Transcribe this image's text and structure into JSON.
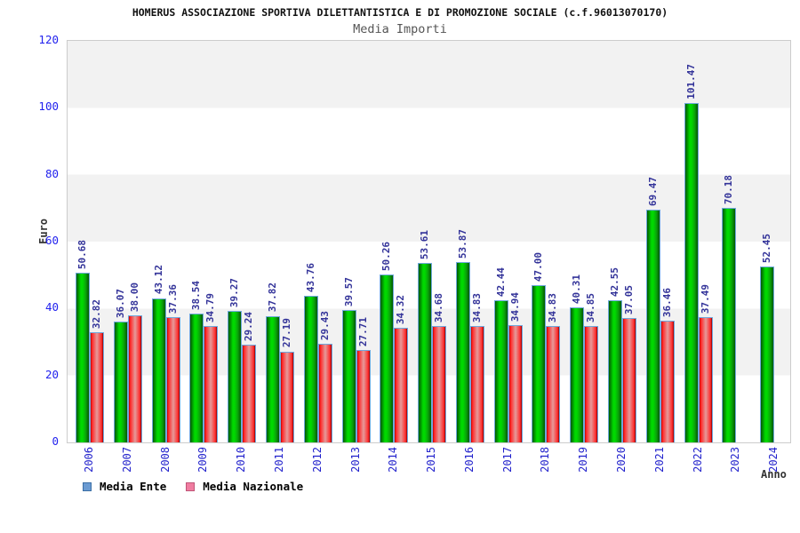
{
  "chart": {
    "title": "HOMERUS ASSOCIAZIONE SPORTIVA DILETTANTISTICA E DI PROMOZIONE SOCIALE (c.f.96013070170)",
    "subtitle": "Media Importi",
    "y_axis_label": "Euro",
    "x_axis_label": "Anno"
  },
  "legend": {
    "items": [
      {
        "label": "Media Ente",
        "swatch_fill": "#6b9bd2",
        "swatch_border": "#3a6ea5"
      },
      {
        "label": "Media Nazionale",
        "swatch_fill": "#f07ca0",
        "swatch_border": "#c05578"
      }
    ]
  },
  "chart_data": {
    "type": "bar",
    "title": "Media Importi",
    "xlabel": "Anno",
    "ylabel": "Euro",
    "ylim": [
      0,
      120
    ],
    "yticks": [
      0,
      20,
      40,
      60,
      80,
      100,
      120
    ],
    "grid_bands": true,
    "legend_position": "bottom",
    "categories": [
      "2006",
      "2007",
      "2008",
      "2009",
      "2010",
      "2011",
      "2012",
      "2013",
      "2014",
      "2015",
      "2016",
      "2017",
      "2018",
      "2019",
      "2020",
      "2021",
      "2022",
      "2023",
      "2024"
    ],
    "series": [
      {
        "name": "Media Ente",
        "color_main": "#00d800",
        "color_edge": "#025702",
        "values": [
          50.68,
          36.07,
          43.12,
          38.54,
          39.27,
          37.82,
          43.76,
          39.57,
          50.26,
          53.61,
          53.87,
          42.44,
          47.0,
          40.31,
          42.55,
          69.47,
          101.47,
          70.18,
          52.45
        ]
      },
      {
        "name": "Media Nazionale",
        "color_main": "#ff2a2a",
        "color_center": "#e59a9a",
        "values": [
          32.82,
          38.0,
          37.36,
          34.79,
          29.24,
          27.19,
          29.43,
          27.71,
          34.32,
          34.68,
          34.83,
          34.94,
          34.83,
          34.85,
          37.05,
          36.46,
          37.49,
          null,
          null
        ]
      }
    ],
    "value_label_color": "#333399",
    "axis_tick_color": "#2222ee",
    "category_label_color": "#2222cc",
    "band_color_a": "#f2f2f2",
    "band_color_b": "#ffffff",
    "bar_outline_color": "#6fa8dc"
  }
}
